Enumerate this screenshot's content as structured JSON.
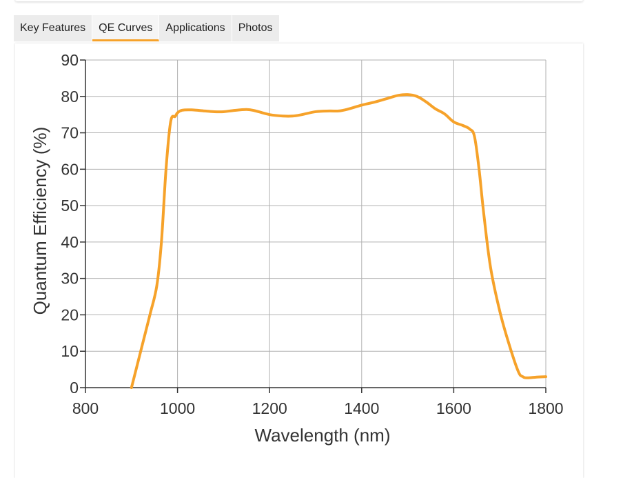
{
  "tabs": [
    {
      "label": "Key Features",
      "active": false
    },
    {
      "label": "QE Curves",
      "active": true
    },
    {
      "label": "Applications",
      "active": false
    },
    {
      "label": "Photos",
      "active": false
    }
  ],
  "colors": {
    "accent": "#f6a22a",
    "curve": "#f6a22a",
    "grid": "#b0b0b0",
    "axis": "#333333"
  },
  "chart_data": {
    "type": "line",
    "title": "",
    "xlabel": "Wavelength (nm)",
    "ylabel": "Quantum Efficiency (%)",
    "xlim": [
      800,
      1800
    ],
    "ylim": [
      0,
      90
    ],
    "xticks": [
      800,
      1000,
      1200,
      1400,
      1600,
      1800
    ],
    "yticks": [
      0,
      10,
      20,
      30,
      40,
      50,
      60,
      70,
      80,
      90
    ],
    "grid": true,
    "legend": "none",
    "series": [
      {
        "color": "#f6a22a",
        "x": [
          900,
          920,
          940,
          955,
          965,
          975,
          985,
          995,
          1000,
          1010,
          1030,
          1060,
          1080,
          1100,
          1120,
          1150,
          1170,
          1200,
          1230,
          1250,
          1270,
          1300,
          1330,
          1350,
          1370,
          1400,
          1430,
          1460,
          1480,
          1500,
          1520,
          1540,
          1560,
          1580,
          1600,
          1620,
          1635,
          1645,
          1655,
          1665,
          1680,
          1700,
          1720,
          1740,
          1750,
          1760,
          1780,
          1800
        ],
        "y": [
          0,
          10,
          20,
          28,
          40,
          60,
          73,
          74.5,
          75.5,
          76.2,
          76.3,
          76,
          75.8,
          75.8,
          76.1,
          76.4,
          76,
          75,
          74.6,
          74.6,
          75,
          75.8,
          76,
          76,
          76.5,
          77.6,
          78.5,
          79.6,
          80.3,
          80.5,
          80,
          78.5,
          76.6,
          75.2,
          73,
          72,
          71,
          69,
          60,
          48,
          33,
          21,
          12,
          4.5,
          3,
          2.7,
          2.9,
          3
        ]
      }
    ]
  }
}
